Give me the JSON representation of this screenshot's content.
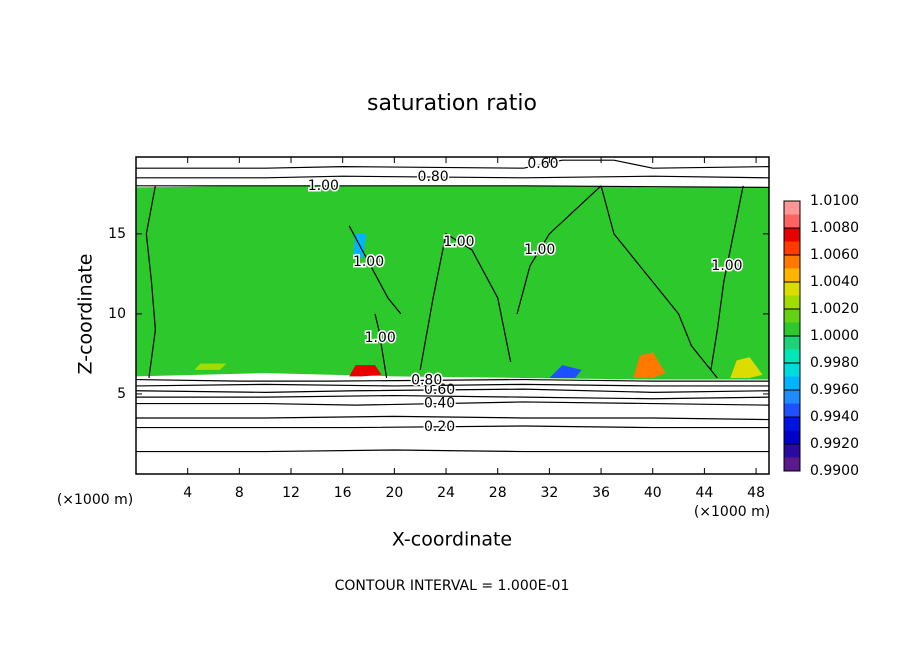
{
  "chart_data": {
    "type": "contour",
    "title": "saturation ratio",
    "xlabel": "X-coordinate",
    "ylabel": "Z-coordinate",
    "x_unit": "(×1000 m)",
    "x_unit_right": "(×1000 m)",
    "note": "CONTOUR INTERVAL = 1.000E-01",
    "xlim": [
      0,
      49
    ],
    "ylim": [
      0,
      19.8
    ],
    "xticks": [
      4,
      8,
      12,
      16,
      20,
      24,
      28,
      32,
      36,
      40,
      44,
      48
    ],
    "yticks": [
      5,
      10,
      15
    ],
    "colorbar": {
      "lim": [
        0.99,
        1.01
      ],
      "ticks": [
        {
          "value": 0.99,
          "label": "0.9900"
        },
        {
          "value": 0.992,
          "label": "0.9920"
        },
        {
          "value": 0.994,
          "label": "0.9940"
        },
        {
          "value": 0.996,
          "label": "0.9960"
        },
        {
          "value": 0.998,
          "label": "0.9980"
        },
        {
          "value": 1.0,
          "label": "1.0000"
        },
        {
          "value": 1.002,
          "label": "1.0020"
        },
        {
          "value": 1.004,
          "label": "1.0040"
        },
        {
          "value": 1.006,
          "label": "1.0060"
        },
        {
          "value": 1.008,
          "label": "1.0080"
        },
        {
          "value": 1.01,
          "label": "1.0100"
        }
      ],
      "colors": [
        "#5a1a8c",
        "#2a0aa0",
        "#0000c8",
        "#0014e0",
        "#1e50ff",
        "#1e8cff",
        "#00b4ff",
        "#00dcdc",
        "#00e6b4",
        "#1ed278",
        "#2cc82c",
        "#64d214",
        "#a0dc00",
        "#dcdc00",
        "#ffb400",
        "#ff7800",
        "#ff3c00",
        "#e60000",
        "#ff6464",
        "#ff9696"
      ]
    },
    "patches": [
      {
        "level": 1.0005,
        "x": [
          0,
          10,
          20,
          30,
          34,
          40,
          49,
          49,
          40,
          30,
          20,
          10,
          0
        ],
        "z": [
          17.9,
          18.0,
          18.0,
          18.0,
          18.0,
          17.9,
          17.9,
          5.9,
          5.9,
          6.0,
          6.1,
          6.3,
          6.1
        ]
      },
      {
        "level": 1.0025,
        "x": [
          4.5,
          6.5,
          7.0,
          5.0
        ],
        "z": [
          6.5,
          6.5,
          6.9,
          6.9
        ]
      },
      {
        "level": 1.0075,
        "x": [
          16.5,
          17.5,
          19.0,
          18.5,
          17.0
        ],
        "z": [
          6.1,
          6.1,
          6.2,
          6.8,
          6.8
        ]
      },
      {
        "level": 1.0055,
        "x": [
          38.5,
          40.0,
          41.0,
          40.0,
          39.0
        ],
        "z": [
          6.0,
          6.0,
          6.3,
          7.6,
          7.4
        ]
      },
      {
        "level": 1.0035,
        "x": [
          46.0,
          47.5,
          48.5,
          47.5,
          46.5
        ],
        "z": [
          6.0,
          6.0,
          6.2,
          7.3,
          7.1
        ]
      },
      {
        "level": 0.9945,
        "x": [
          32.0,
          34.0,
          34.5,
          33.0
        ],
        "z": [
          6.0,
          6.0,
          6.5,
          6.8
        ]
      },
      {
        "level": 0.9965,
        "x": [
          16.8,
          17.6,
          17.8,
          17.0
        ],
        "z": [
          13.5,
          13.5,
          15.0,
          15.0
        ]
      }
    ],
    "contours": [
      {
        "level": 0.1,
        "x": [
          0,
          10,
          20,
          30,
          40,
          49
        ],
        "z": [
          1.4,
          1.4,
          1.5,
          1.4,
          1.4,
          1.4
        ]
      },
      {
        "level": 0.2,
        "label": "0.20",
        "x": [
          0,
          10,
          17,
          30,
          40,
          49
        ],
        "z": [
          2.9,
          2.9,
          2.9,
          3.0,
          2.9,
          2.9
        ]
      },
      {
        "level": 0.3,
        "x": [
          0,
          10,
          20,
          30,
          40,
          49
        ],
        "z": [
          3.5,
          3.5,
          3.6,
          3.5,
          3.5,
          3.4
        ]
      },
      {
        "level": 0.4,
        "label": "0.40",
        "x": [
          0,
          10,
          17,
          30,
          40,
          49
        ],
        "z": [
          4.4,
          4.4,
          4.3,
          4.5,
          4.4,
          4.3
        ]
      },
      {
        "level": 0.5,
        "x": [
          0,
          10,
          20,
          30,
          40,
          49
        ],
        "z": [
          4.8,
          4.8,
          4.9,
          4.8,
          4.7,
          4.8
        ]
      },
      {
        "level": 0.6,
        "label": "0.60",
        "x": [
          0,
          10,
          17,
          30,
          40,
          49
        ],
        "z": [
          5.2,
          5.1,
          5.2,
          5.3,
          5.1,
          5.2
        ]
      },
      {
        "level": 0.7,
        "x": [
          0,
          10,
          20,
          30,
          40,
          49
        ],
        "z": [
          5.5,
          5.6,
          5.5,
          5.6,
          5.5,
          5.5
        ]
      },
      {
        "level": 0.8,
        "label": "0.80",
        "x": [
          0,
          8,
          15,
          30,
          40,
          49
        ],
        "z": [
          5.9,
          5.8,
          5.8,
          5.9,
          5.8,
          5.8
        ]
      },
      {
        "level": 1.0,
        "label": "1.00",
        "x": [
          0,
          4,
          9,
          20,
          30,
          49
        ],
        "z": [
          18.0,
          18.0,
          18.0,
          18.0,
          18.0,
          17.9
        ]
      },
      {
        "level": 0.8,
        "label": "0.80",
        "x": [
          0,
          10,
          16,
          30,
          40,
          49
        ],
        "z": [
          18.5,
          18.5,
          18.6,
          18.5,
          18.6,
          18.5
        ]
      },
      {
        "level": 0.6,
        "label": "0.60",
        "x": [
          0,
          10,
          16,
          30,
          33,
          37,
          40,
          49
        ],
        "z": [
          19.1,
          19.1,
          19.2,
          19.1,
          19.6,
          19.6,
          19.1,
          19.2
        ]
      },
      {
        "level": 1.0,
        "x": [
          1.5,
          0.8,
          1.2,
          1.5,
          1.0
        ],
        "z": [
          18,
          15,
          12,
          9,
          6
        ]
      },
      {
        "level": 1.0,
        "label": "1.00",
        "x": [
          16.5,
          17.5,
          18.5,
          19.5,
          20.5
        ],
        "z": [
          15.5,
          14,
          12.5,
          11,
          10
        ]
      },
      {
        "level": 1.0,
        "label": "1.00",
        "x": [
          18.5,
          18.8,
          19.0,
          19.2,
          19.4
        ],
        "z": [
          10,
          9,
          8,
          7,
          6
        ]
      },
      {
        "level": 1.0,
        "label": "1.00",
        "x": [
          22,
          23,
          24,
          26,
          28,
          29
        ],
        "z": [
          6.5,
          11,
          15,
          14,
          11,
          7
        ]
      },
      {
        "level": 1.0,
        "label": "1.00",
        "x": [
          29.5,
          30,
          30.5,
          32,
          34,
          36
        ],
        "z": [
          10,
          11.5,
          13,
          15,
          16.5,
          18
        ]
      },
      {
        "level": 1.0,
        "x": [
          36,
          37,
          40,
          42,
          43,
          45
        ],
        "z": [
          18,
          15,
          12,
          10,
          8,
          6
        ]
      },
      {
        "level": 1.0,
        "label": "1.00",
        "x": [
          44.5,
          45,
          45.5,
          46,
          46.5,
          47
        ],
        "z": [
          6.5,
          9,
          12,
          14,
          16,
          18
        ]
      }
    ]
  }
}
